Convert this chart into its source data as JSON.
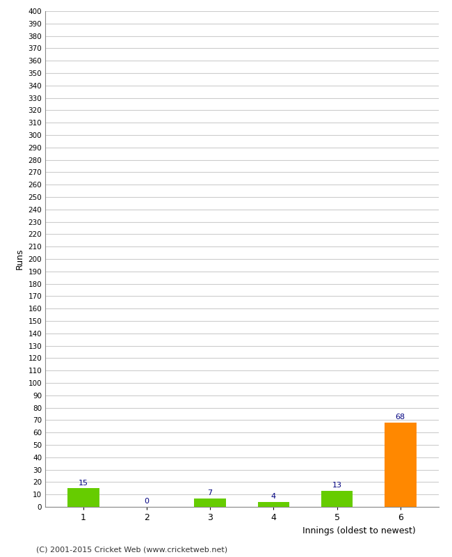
{
  "categories": [
    "1",
    "2",
    "3",
    "4",
    "5",
    "6"
  ],
  "values": [
    15,
    0,
    7,
    4,
    13,
    68
  ],
  "bar_colors": [
    "#66cc00",
    "#66cc00",
    "#66cc00",
    "#66cc00",
    "#66cc00",
    "#ff8800"
  ],
  "xlabel": "Innings (oldest to newest)",
  "ylabel": "Runs",
  "ylim": [
    0,
    400
  ],
  "yticks": [
    0,
    10,
    20,
    30,
    40,
    50,
    60,
    70,
    80,
    90,
    100,
    110,
    120,
    130,
    140,
    150,
    160,
    170,
    180,
    190,
    200,
    210,
    220,
    230,
    240,
    250,
    260,
    270,
    280,
    290,
    300,
    310,
    320,
    330,
    340,
    350,
    360,
    370,
    380,
    390,
    400
  ],
  "label_color": "#000080",
  "background_color": "#ffffff",
  "grid_color": "#cccccc",
  "footer": "(C) 2001-2015 Cricket Web (www.cricketweb.net)"
}
